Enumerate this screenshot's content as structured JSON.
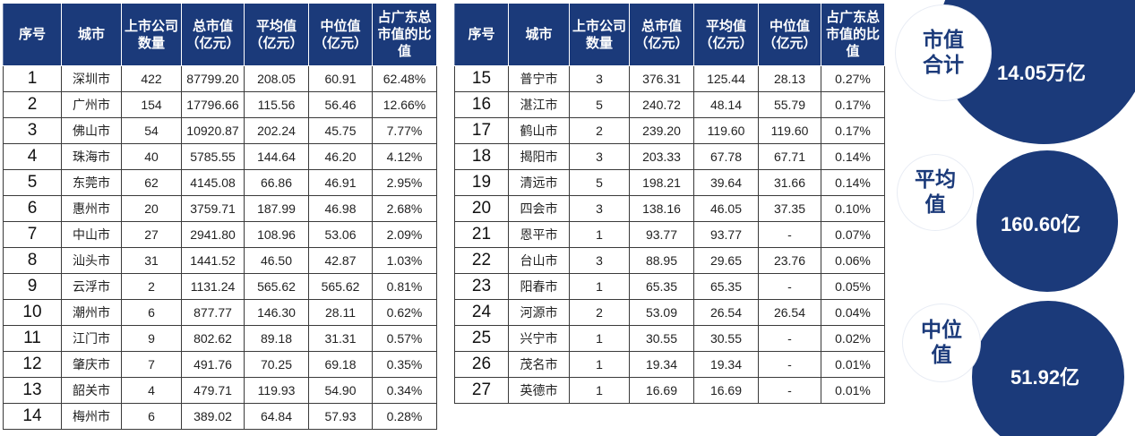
{
  "headers": [
    "序号",
    "城市",
    "上市公司数量",
    "总市值（亿元）",
    "平均值（亿元）",
    "中位值（亿元）",
    "占广东总市值的比值"
  ],
  "left_rows": [
    [
      "1",
      "深圳市",
      "422",
      "87799.20",
      "208.05",
      "60.91",
      "62.48%"
    ],
    [
      "2",
      "广州市",
      "154",
      "17796.66",
      "115.56",
      "56.46",
      "12.66%"
    ],
    [
      "3",
      "佛山市",
      "54",
      "10920.87",
      "202.24",
      "45.75",
      "7.77%"
    ],
    [
      "4",
      "珠海市",
      "40",
      "5785.55",
      "144.64",
      "46.20",
      "4.12%"
    ],
    [
      "5",
      "东莞市",
      "62",
      "4145.08",
      "66.86",
      "46.91",
      "2.95%"
    ],
    [
      "6",
      "惠州市",
      "20",
      "3759.71",
      "187.99",
      "46.98",
      "2.68%"
    ],
    [
      "7",
      "中山市",
      "27",
      "2941.80",
      "108.96",
      "53.06",
      "2.09%"
    ],
    [
      "8",
      "汕头市",
      "31",
      "1441.52",
      "46.50",
      "42.87",
      "1.03%"
    ],
    [
      "9",
      "云浮市",
      "2",
      "1131.24",
      "565.62",
      "565.62",
      "0.81%"
    ],
    [
      "10",
      "潮州市",
      "6",
      "877.77",
      "146.30",
      "28.11",
      "0.62%"
    ],
    [
      "11",
      "江门市",
      "9",
      "802.62",
      "89.18",
      "31.31",
      "0.57%"
    ],
    [
      "12",
      "肇庆市",
      "7",
      "491.76",
      "70.25",
      "69.18",
      "0.35%"
    ],
    [
      "13",
      "韶关市",
      "4",
      "479.71",
      "119.93",
      "54.90",
      "0.34%"
    ],
    [
      "14",
      "梅州市",
      "6",
      "389.02",
      "64.84",
      "57.93",
      "0.28%"
    ]
  ],
  "right_rows": [
    [
      "15",
      "普宁市",
      "3",
      "376.31",
      "125.44",
      "28.13",
      "0.27%"
    ],
    [
      "16",
      "湛江市",
      "5",
      "240.72",
      "48.14",
      "55.79",
      "0.17%"
    ],
    [
      "17",
      "鹤山市",
      "2",
      "239.20",
      "119.60",
      "119.60",
      "0.17%"
    ],
    [
      "18",
      "揭阳市",
      "3",
      "203.33",
      "67.78",
      "67.71",
      "0.14%"
    ],
    [
      "19",
      "清远市",
      "5",
      "198.21",
      "39.64",
      "31.66",
      "0.14%"
    ],
    [
      "20",
      "四会市",
      "3",
      "138.16",
      "46.05",
      "37.35",
      "0.10%"
    ],
    [
      "21",
      "恩平市",
      "1",
      "93.77",
      "93.77",
      "-",
      "0.07%"
    ],
    [
      "22",
      "台山市",
      "3",
      "88.95",
      "29.65",
      "23.76",
      "0.06%"
    ],
    [
      "23",
      "阳春市",
      "1",
      "65.35",
      "65.35",
      "-",
      "0.05%"
    ],
    [
      "24",
      "河源市",
      "2",
      "53.09",
      "26.54",
      "26.54",
      "0.04%"
    ],
    [
      "25",
      "兴宁市",
      "1",
      "30.55",
      "30.55",
      "-",
      "0.02%"
    ],
    [
      "26",
      "茂名市",
      "1",
      "19.34",
      "19.34",
      "-",
      "0.01%"
    ],
    [
      "27",
      "英德市",
      "1",
      "16.69",
      "16.69",
      "-",
      "0.01%"
    ]
  ],
  "summary": {
    "total": {
      "label": "市值合计",
      "value": "14.05万亿"
    },
    "mean": {
      "label": "平均值",
      "value": "160.60亿"
    },
    "median": {
      "label": "中位值",
      "value": "51.92亿"
    }
  },
  "colors": {
    "header_bg": "#1b3a7a",
    "circle_bg": "#1b3a7a"
  }
}
